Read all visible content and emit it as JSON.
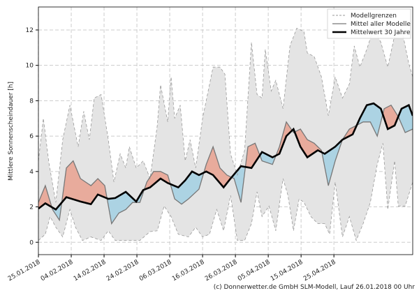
{
  "chart_data": {
    "type": "line",
    "title": "",
    "xlabel": "",
    "ylabel": "Mittlere Sonnenscheindauer [h]",
    "x_unit": "days since 25.01.2018",
    "xlim": [
      0,
      114
    ],
    "ylim": [
      -0.7,
      13.3
    ],
    "grid": true,
    "legend_position": "top-right",
    "x_ticks": [
      {
        "day": 0,
        "label": "25.01.2018"
      },
      {
        "day": 10,
        "label": "04.02.2018"
      },
      {
        "day": 20,
        "label": "14.02.2018"
      },
      {
        "day": 30,
        "label": "24.02.2018"
      },
      {
        "day": 40,
        "label": "06.03.2018"
      },
      {
        "day": 50,
        "label": "16.03.2018"
      },
      {
        "day": 60,
        "label": "26.03.2018"
      },
      {
        "day": 70,
        "label": "05.04.2018"
      },
      {
        "day": 80,
        "label": "15.04.2018"
      },
      {
        "day": 90,
        "label": "25.04.2018"
      }
    ],
    "y_ticks": [
      "0",
      "2",
      "4",
      "6",
      "8",
      "10",
      "12"
    ],
    "legend": [
      "Modellgrenzen",
      "Mittel aller Modelle",
      "Mittelwert 30 Jahre"
    ],
    "colors": {
      "band": "#e4e4e4",
      "band_edge": "#999999",
      "mean": "#777777",
      "clim": "#000000",
      "above": "#e8ab9c",
      "below": "#acd3e3"
    },
    "series": [
      {
        "name": "Modellgrenzen oben",
        "x": [
          0,
          1.5,
          3.2,
          5.3,
          7.4,
          9.6,
          12.1,
          13.8,
          15.5,
          17,
          19.1,
          21.3,
          23,
          24.9,
          26.6,
          27.7,
          29.8,
          31.9,
          34,
          36.2,
          37.2,
          39.4,
          40.4,
          41.5,
          43.2,
          44.7,
          46.2,
          47.9,
          50,
          53.2,
          55.3,
          56.8,
          58.5,
          60.6,
          62.8,
          64.9,
          66.6,
          68.1,
          69.1,
          70.9,
          72.3,
          74.5,
          76.6,
          78.7,
          80.9,
          81.9,
          84,
          86.2,
          88.3,
          90.4,
          92.6,
          94.7,
          96.2,
          97.9,
          100,
          102.1,
          104.3,
          106.4,
          108.5,
          110.6,
          112.8,
          114
        ],
        "y": [
          4.6,
          7.0,
          4.5,
          2.25,
          5.8,
          7.75,
          5.4,
          7.4,
          5.8,
          8.15,
          8.35,
          5.8,
          3.4,
          5.0,
          4.2,
          5.4,
          4.2,
          4.6,
          3.6,
          6.6,
          8.9,
          6.8,
          9.35,
          7.0,
          7.75,
          4.6,
          5.8,
          4.2,
          7.0,
          9.9,
          9.9,
          9.5,
          5.0,
          3.8,
          5.2,
          11.3,
          8.35,
          8.15,
          10.9,
          8.55,
          9.15,
          7.55,
          11.1,
          12.1,
          11.9,
          10.7,
          10.5,
          9.35,
          7.15,
          9.35,
          8.15,
          8.95,
          11.1,
          9.9,
          10.9,
          12.1,
          11.3,
          9.9,
          11.7,
          12.1,
          10.1,
          9.35
        ]
      },
      {
        "name": "Modellgrenzen unten",
        "x": [
          0,
          2.1,
          3.6,
          5.3,
          7.4,
          9.6,
          11.3,
          13.4,
          16,
          19.1,
          21.3,
          23.4,
          30.9,
          34,
          36.2,
          38.3,
          40.4,
          42.6,
          45.7,
          47.9,
          50,
          52.1,
          54.3,
          56.4,
          58.5,
          60.6,
          62.8,
          64.9,
          66.6,
          68.1,
          70.2,
          72.3,
          74.5,
          76,
          77.7,
          79.4,
          80.9,
          83,
          85.1,
          87.2,
          88.7,
          90.4,
          92.6,
          94.7,
          96.8,
          98.9,
          101.1,
          103.2,
          104.9,
          106.4,
          108.5,
          109.6,
          111.7,
          114
        ],
        "y": [
          0.1,
          0.45,
          1.45,
          0.85,
          0.3,
          1.85,
          0.85,
          0.1,
          0.3,
          0.1,
          0.65,
          0.1,
          0.1,
          0.6,
          0.65,
          2.05,
          1.45,
          0.45,
          0.3,
          0.85,
          0.3,
          0.45,
          1.85,
          0.65,
          2.65,
          0.1,
          0.1,
          1.05,
          2.85,
          1.45,
          2.05,
          0.65,
          3.6,
          2.65,
          0.65,
          2.45,
          2.25,
          1.45,
          1.05,
          1.05,
          0.45,
          3.4,
          0.3,
          1.45,
          0.1,
          1.05,
          2.25,
          4.4,
          5.6,
          1.85,
          4.6,
          2.05,
          2.05,
          3.4
        ]
      },
      {
        "name": "Mittel aller Modelle",
        "x": [
          0,
          2.1,
          4.3,
          6.4,
          8.5,
          10.6,
          12.8,
          16,
          18.1,
          20.2,
          22.3,
          24.5,
          26.6,
          28.7,
          30.9,
          33,
          35.1,
          37.2,
          39.4,
          41.5,
          43.6,
          45.7,
          48.9,
          51.1,
          53.2,
          55.3,
          57.4,
          59.6,
          61.7,
          63.8,
          66,
          68.1,
          71.3,
          73.4,
          75.5,
          77.7,
          79.8,
          81.9,
          84,
          86.2,
          88.3,
          90.4,
          92.6,
          94.7,
          96.8,
          98.9,
          101.1,
          103.2,
          105.3,
          107.4,
          109.6,
          111.7,
          114
        ],
        "y": [
          2.25,
          3.2,
          1.85,
          1.25,
          4.2,
          4.6,
          3.6,
          3.2,
          3.6,
          3.2,
          1.05,
          1.65,
          1.85,
          2.25,
          2.25,
          3.4,
          4.0,
          4.0,
          3.8,
          2.45,
          2.15,
          2.45,
          3.0,
          4.4,
          5.4,
          4.2,
          3.8,
          3.6,
          2.25,
          5.4,
          5.6,
          4.6,
          4.4,
          5.4,
          6.8,
          6.2,
          6.4,
          5.8,
          5.6,
          5.2,
          3.2,
          4.6,
          5.8,
          6.4,
          6.6,
          6.8,
          6.8,
          6.0,
          7.55,
          7.75,
          7.1,
          6.2,
          6.4
        ]
      },
      {
        "name": "Mittelwert 30 Jahre",
        "x": [
          0,
          2.1,
          5.3,
          8.5,
          12.8,
          16,
          18.1,
          21.3,
          23.4,
          26.6,
          29.8,
          31.9,
          34,
          37.2,
          39.4,
          42.6,
          44.7,
          46.8,
          48.9,
          51.1,
          53.2,
          56.4,
          58.5,
          61.7,
          64.9,
          68.1,
          71.3,
          73.4,
          75.5,
          77.7,
          79.8,
          81.9,
          85.1,
          87.2,
          90.4,
          92.6,
          95.7,
          97.9,
          100,
          102.1,
          104.3,
          106.4,
          108.5,
          110.6,
          112.8,
          114
        ],
        "y": [
          1.9,
          2.2,
          1.85,
          2.55,
          2.3,
          2.15,
          2.7,
          2.45,
          2.5,
          2.85,
          2.3,
          2.95,
          3.1,
          3.6,
          3.35,
          3.1,
          3.5,
          4.0,
          3.8,
          4.0,
          3.8,
          3.1,
          3.6,
          4.3,
          4.2,
          5.1,
          4.8,
          5.0,
          6.0,
          6.4,
          5.4,
          4.8,
          5.2,
          5.0,
          5.4,
          5.8,
          6.1,
          7.0,
          7.75,
          7.85,
          7.55,
          6.4,
          6.6,
          7.55,
          7.75,
          7.15
        ]
      }
    ]
  },
  "credit": "(c) Donnerwetter.de GmbH SLM-Modell, Lauf 26.01.2018 00 Uhr"
}
